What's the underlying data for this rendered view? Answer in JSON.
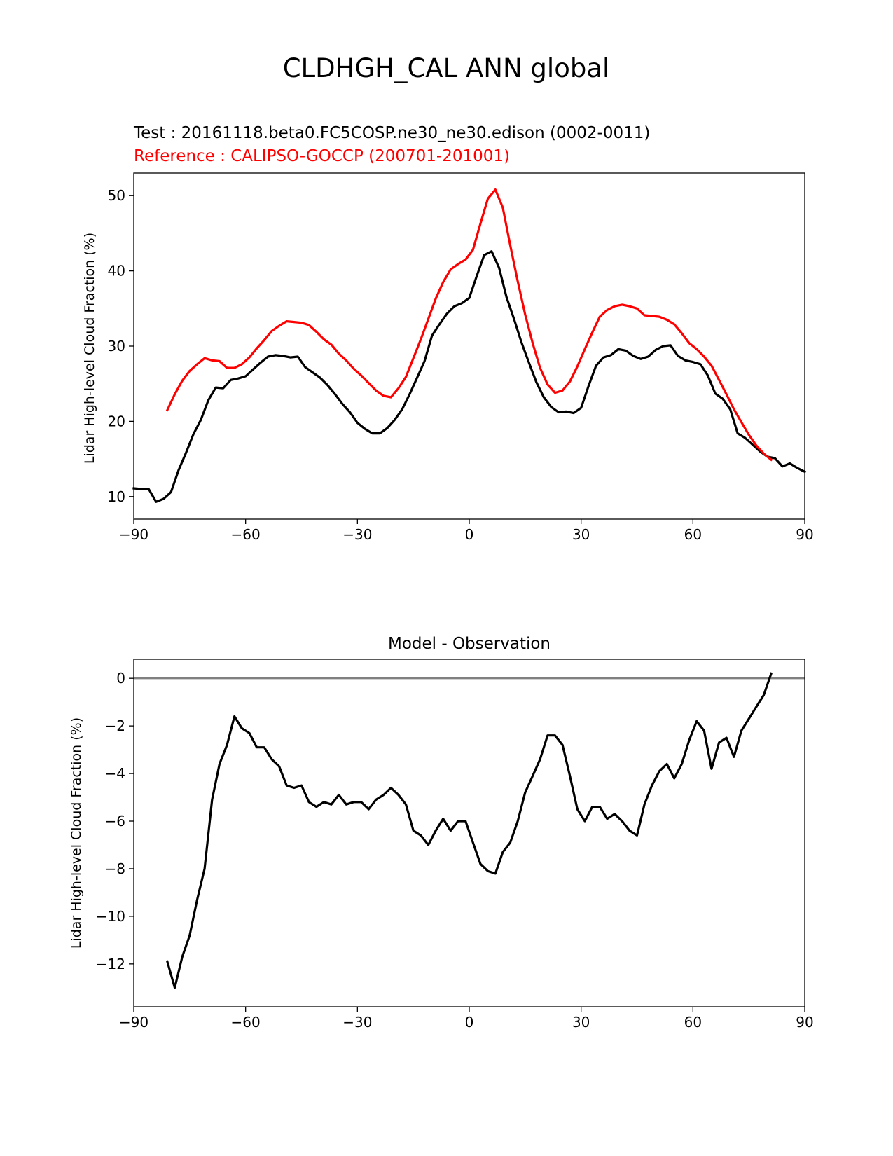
{
  "figure": {
    "suptitle": "CLDHGH_CAL ANN global"
  },
  "chart_data": [
    {
      "type": "line",
      "title_lines": [
        {
          "text": "Test : 20161118.beta0.FC5COSP.ne30_ne30.edison (0002-0011)",
          "color": "#000000"
        },
        {
          "text": "Reference : CALIPSO-GOCCP (200701-201001)",
          "color": "#ff0000"
        }
      ],
      "xlabel": "",
      "ylabel": "Lidar High-level Cloud Fraction (%)",
      "xlim": [
        -90,
        90
      ],
      "ylim": [
        7.0,
        53.0
      ],
      "xticks": [
        -90,
        -60,
        -30,
        0,
        30,
        60,
        90
      ],
      "xtick_labels": [
        "−90",
        "−60",
        "−30",
        "0",
        "30",
        "60",
        "90"
      ],
      "yticks": [
        10,
        20,
        30,
        40,
        50
      ],
      "ytick_labels": [
        "10",
        "20",
        "30",
        "40",
        "50"
      ],
      "grid": false,
      "series": [
        {
          "name": "Test",
          "color": "#000000",
          "x": [
            -90,
            -88,
            -86,
            -84,
            -82,
            -80,
            -78,
            -76,
            -74,
            -72,
            -70,
            -68,
            -66,
            -64,
            -62,
            -60,
            -58,
            -56,
            -54,
            -52,
            -50,
            -48,
            -46,
            -44,
            -42,
            -40,
            -38,
            -36,
            -34,
            -32,
            -30,
            -28,
            -26,
            -24,
            -22,
            -20,
            -18,
            -16,
            -14,
            -12,
            -10,
            -8,
            -6,
            -4,
            -2,
            0,
            2,
            4,
            6,
            8,
            10,
            12,
            14,
            16,
            18,
            20,
            22,
            24,
            26,
            28,
            30,
            32,
            34,
            36,
            38,
            40,
            42,
            44,
            46,
            48,
            50,
            52,
            54,
            56,
            58,
            60,
            62,
            64,
            66,
            68,
            70,
            72,
            74,
            76,
            78,
            80,
            82,
            84,
            86,
            88,
            90
          ],
          "values": [
            11.1,
            11.0,
            11.0,
            9.3,
            9.7,
            10.6,
            13.5,
            15.8,
            18.3,
            20.2,
            22.8,
            24.5,
            24.4,
            25.5,
            25.7,
            26.0,
            26.9,
            27.8,
            28.6,
            28.8,
            28.7,
            28.5,
            28.6,
            27.2,
            26.5,
            25.8,
            24.8,
            23.6,
            22.3,
            21.2,
            19.8,
            19.0,
            18.4,
            18.4,
            19.1,
            20.2,
            21.6,
            23.6,
            25.8,
            28.0,
            31.4,
            32.9,
            34.3,
            35.3,
            35.7,
            36.4,
            39.3,
            42.1,
            42.6,
            40.4,
            36.5,
            33.6,
            30.5,
            27.8,
            25.2,
            23.2,
            21.9,
            21.2,
            21.3,
            21.1,
            21.8,
            24.7,
            27.4,
            28.5,
            28.8,
            29.6,
            29.4,
            28.7,
            28.3,
            28.6,
            29.5,
            30.0,
            30.1,
            28.7,
            28.1,
            27.9,
            27.6,
            26.1,
            23.7,
            23.0,
            21.6,
            18.4,
            17.8,
            16.9,
            16.0,
            15.3,
            15.1,
            14.0,
            14.4,
            13.8,
            13.3
          ]
        },
        {
          "name": "Reference",
          "color": "#ff0000",
          "x": [
            -81,
            -79,
            -77,
            -75,
            -73,
            -71,
            -69,
            -67,
            -65,
            -63,
            -61,
            -59,
            -57,
            -55,
            -53,
            -51,
            -49,
            -47,
            -45,
            -43,
            -41,
            -39,
            -37,
            -35,
            -33,
            -31,
            -29,
            -27,
            -25,
            -23,
            -21,
            -19,
            -17,
            -15,
            -13,
            -11,
            -9,
            -7,
            -5,
            -3,
            -1,
            1,
            3,
            5,
            7,
            9,
            11,
            13,
            15,
            17,
            19,
            21,
            23,
            25,
            27,
            29,
            31,
            33,
            35,
            37,
            39,
            41,
            43,
            45,
            47,
            49,
            51,
            53,
            55,
            57,
            59,
            61,
            63,
            65,
            67,
            69,
            71,
            73,
            75,
            77,
            79,
            81
          ],
          "values": [
            21.5,
            23.6,
            25.4,
            26.7,
            27.6,
            28.4,
            28.1,
            28.0,
            27.1,
            27.1,
            27.6,
            28.5,
            29.7,
            30.8,
            32.0,
            32.7,
            33.3,
            33.2,
            33.1,
            32.8,
            31.9,
            30.9,
            30.2,
            29.0,
            28.1,
            27.0,
            26.1,
            25.1,
            24.1,
            23.4,
            23.2,
            24.4,
            25.9,
            28.4,
            30.9,
            33.6,
            36.3,
            38.5,
            40.2,
            40.9,
            41.5,
            42.8,
            46.3,
            49.6,
            50.8,
            48.4,
            43.4,
            38.6,
            34.2,
            30.4,
            27.1,
            24.9,
            23.8,
            24.1,
            25.3,
            27.3,
            29.6,
            31.8,
            33.9,
            34.8,
            35.3,
            35.5,
            35.3,
            35.0,
            34.1,
            34.0,
            33.9,
            33.5,
            32.9,
            31.7,
            30.4,
            29.6,
            28.6,
            27.4,
            25.5,
            23.6,
            21.6,
            19.9,
            18.2,
            16.8,
            15.7,
            14.9
          ]
        }
      ]
    },
    {
      "type": "line",
      "title": "Model - Observation",
      "xlabel": "",
      "ylabel": "Lidar High-level Cloud Fraction (%)",
      "xlim": [
        -90,
        90
      ],
      "ylim": [
        -13.8,
        0.8
      ],
      "xticks": [
        -90,
        -60,
        -30,
        0,
        30,
        60,
        90
      ],
      "xtick_labels": [
        "−90",
        "−60",
        "−30",
        "0",
        "30",
        "60",
        "90"
      ],
      "yticks": [
        0,
        -2,
        -4,
        -6,
        -8,
        -10,
        -12
      ],
      "ytick_labels": [
        "0",
        "−2",
        "−4",
        "−6",
        "−8",
        "−10",
        "−12"
      ],
      "grid": false,
      "zero_line": {
        "value": 0,
        "color": "#808080"
      },
      "series": [
        {
          "name": "Model - Observation",
          "color": "#000000",
          "x": [
            -81,
            -79,
            -77,
            -75,
            -73,
            -71,
            -69,
            -67,
            -65,
            -63,
            -61,
            -59,
            -57,
            -55,
            -53,
            -51,
            -49,
            -47,
            -45,
            -43,
            -41,
            -39,
            -37,
            -35,
            -33,
            -31,
            -29,
            -27,
            -25,
            -23,
            -21,
            -19,
            -17,
            -15,
            -13,
            -11,
            -9,
            -7,
            -5,
            -3,
            -1,
            1,
            3,
            5,
            7,
            9,
            11,
            13,
            15,
            17,
            19,
            21,
            23,
            25,
            27,
            29,
            31,
            33,
            35,
            37,
            39,
            41,
            43,
            45,
            47,
            49,
            51,
            53,
            55,
            57,
            59,
            61,
            63,
            65,
            67,
            69,
            71,
            73,
            75,
            77,
            79,
            81
          ],
          "values": [
            -11.9,
            -13.0,
            -11.7,
            -10.8,
            -9.3,
            -8.0,
            -5.1,
            -3.6,
            -2.8,
            -1.6,
            -2.1,
            -2.3,
            -2.9,
            -2.9,
            -3.4,
            -3.7,
            -4.5,
            -4.6,
            -4.5,
            -5.2,
            -5.4,
            -5.2,
            -5.3,
            -4.9,
            -5.3,
            -5.2,
            -5.2,
            -5.5,
            -5.1,
            -4.9,
            -4.6,
            -4.9,
            -5.3,
            -6.4,
            -6.6,
            -7.0,
            -6.4,
            -5.9,
            -6.4,
            -6.0,
            -6.0,
            -6.9,
            -7.8,
            -8.1,
            -8.2,
            -7.3,
            -6.9,
            -6.0,
            -4.8,
            -4.1,
            -3.4,
            -2.4,
            -2.4,
            -2.8,
            -4.1,
            -5.5,
            -6.0,
            -5.4,
            -5.4,
            -5.9,
            -5.7,
            -6.0,
            -6.4,
            -6.6,
            -5.3,
            -4.5,
            -3.9,
            -3.6,
            -4.2,
            -3.6,
            -2.6,
            -1.8,
            -2.2,
            -3.8,
            -2.7,
            -2.5,
            -3.3,
            -2.2,
            -1.7,
            -1.2,
            -0.7,
            0.2
          ]
        }
      ]
    }
  ]
}
